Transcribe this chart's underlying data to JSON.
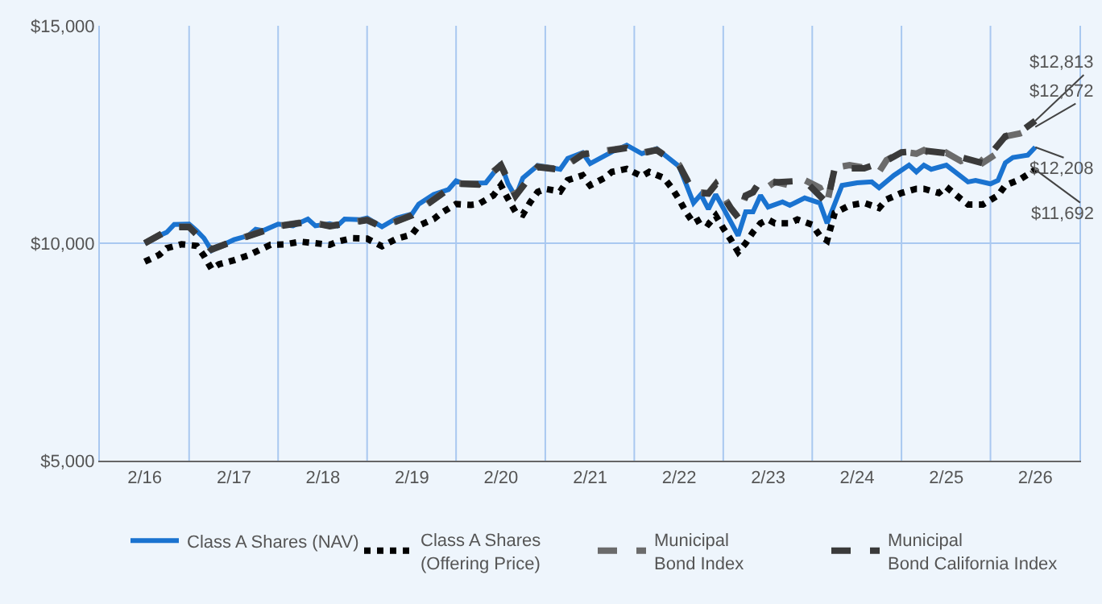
{
  "chart_data": {
    "type": "line",
    "xlim": [
      "2015-08-01",
      "2026-08-01"
    ],
    "xticks": [
      {
        "value": "2016-02-01",
        "label": "2/16"
      },
      {
        "value": "2016-08-01",
        "label": null
      },
      {
        "value": "2017-02-01",
        "label": "2/17"
      },
      {
        "value": "2017-08-01",
        "label": null
      },
      {
        "value": "2018-02-01",
        "label": "2/18"
      },
      {
        "value": "2018-08-01",
        "label": null
      },
      {
        "value": "2019-02-01",
        "label": "2/19"
      },
      {
        "value": "2019-08-01",
        "label": null
      },
      {
        "value": "2020-02-01",
        "label": "2/20"
      },
      {
        "value": "2020-08-01",
        "label": null
      },
      {
        "value": "2021-02-01",
        "label": "2/21"
      },
      {
        "value": "2021-08-01",
        "label": null
      },
      {
        "value": "2022-02-01",
        "label": "2/22"
      },
      {
        "value": "2022-08-01",
        "label": null
      },
      {
        "value": "2023-02-01",
        "label": "2/23"
      },
      {
        "value": "2023-08-01",
        "label": null
      },
      {
        "value": "2024-02-01",
        "label": "2/24"
      },
      {
        "value": "2024-08-01",
        "label": null
      },
      {
        "value": "2025-02-01",
        "label": "2/25"
      },
      {
        "value": "2025-08-01",
        "label": null
      },
      {
        "value": "2026-02-01",
        "label": "2/26"
      }
    ],
    "ylim": [
      5000,
      15000
    ],
    "yticks": [
      {
        "value": 5000,
        "label": "$5,000"
      },
      {
        "value": 10000,
        "label": "$10,000"
      },
      {
        "value": 15000,
        "label": "$15,000"
      }
    ],
    "grid": true,
    "legend": "bottom",
    "marker": "none",
    "series": [
      {
        "name": "Class A Shares (NAV)",
        "color": "#1a73d0",
        "line_style": "solid",
        "x": [
          "2016-02",
          "2016-04",
          "2016-05",
          "2016-06",
          "2016-08",
          "2016-09",
          "2016-10",
          "2016-11",
          "2016-12",
          "2017-02",
          "2017-04",
          "2017-05",
          "2017-06",
          "2017-08",
          "2017-10",
          "2017-12",
          "2018-01",
          "2018-03",
          "2018-04",
          "2018-05",
          "2018-07",
          "2018-08",
          "2018-10",
          "2018-12",
          "2019-02",
          "2019-03",
          "2019-05",
          "2019-07",
          "2019-08",
          "2019-09",
          "2019-12",
          "2020-02",
          "2020-03",
          "2020-04",
          "2020-05",
          "2020-07",
          "2020-10",
          "2020-11",
          "2021-01",
          "2021-02",
          "2021-05",
          "2021-07",
          "2021-09",
          "2021-11",
          "2022-02",
          "2022-04",
          "2022-05",
          "2022-06",
          "2022-07",
          "2022-08",
          "2022-10",
          "2022-11",
          "2022-12",
          "2023-01",
          "2023-02",
          "2023-04",
          "2023-05",
          "2023-07",
          "2023-09",
          "2023-10",
          "2023-12",
          "2024-02",
          "2024-04",
          "2024-05",
          "2024-07",
          "2024-09",
          "2024-10",
          "2024-11",
          "2024-12",
          "2025-02",
          "2025-05",
          "2025-06",
          "2025-08",
          "2025-09",
          "2025-10",
          "2025-11",
          "2026-01",
          "2026-02"
        ],
        "values": [
          10000,
          10175,
          10250,
          10430,
          10440,
          10290,
          10115,
          9830,
          9920,
          10080,
          10175,
          10320,
          10290,
          10440,
          10400,
          10555,
          10400,
          10450,
          10400,
          10555,
          10540,
          10580,
          10380,
          10580,
          10670,
          10900,
          11120,
          11235,
          11435,
          11370,
          11390,
          11830,
          11370,
          11065,
          11500,
          11790,
          11700,
          11950,
          12080,
          11830,
          12100,
          12255,
          12060,
          12175,
          11765,
          10925,
          11120,
          10785,
          11120,
          10810,
          10175,
          10720,
          10720,
          11100,
          10830,
          10950,
          10870,
          11040,
          10925,
          10460,
          11330,
          11390,
          11410,
          11275,
          11560,
          11795,
          11640,
          11795,
          11700,
          11795,
          11410,
          11445,
          11365,
          11445,
          11850,
          11970,
          12025,
          12208
        ]
      },
      {
        "name": "Class A Shares\n(Offering Price)",
        "color": "#000000",
        "line_style": "dotted",
        "x": [
          "2016-02",
          "2016-04",
          "2016-05",
          "2016-07",
          "2016-09",
          "2016-10",
          "2016-11",
          "2016-12",
          "2017-02",
          "2017-04",
          "2017-06",
          "2017-07",
          "2017-09",
          "2017-11",
          "2018-01",
          "2018-03",
          "2018-04",
          "2018-06",
          "2018-08",
          "2018-10",
          "2018-12",
          "2019-02",
          "2019-03",
          "2019-05",
          "2019-06",
          "2019-08",
          "2019-10",
          "2019-11",
          "2020-01",
          "2020-02",
          "2020-03",
          "2020-04",
          "2020-05",
          "2020-06",
          "2020-07",
          "2020-08",
          "2020-10",
          "2020-11",
          "2021-01",
          "2021-02",
          "2021-04",
          "2021-05",
          "2021-07",
          "2021-09",
          "2021-10",
          "2021-12",
          "2022-01",
          "2022-02",
          "2022-03",
          "2022-04",
          "2022-05",
          "2022-06",
          "2022-07",
          "2022-08",
          "2022-09",
          "2022-10",
          "2022-11",
          "2022-12",
          "2023-01",
          "2023-02",
          "2023-03",
          "2023-05",
          "2023-06",
          "2023-08",
          "2023-09",
          "2023-10",
          "2023-11",
          "2024-01",
          "2024-03",
          "2024-05",
          "2024-06",
          "2024-08",
          "2024-10",
          "2024-11",
          "2025-01",
          "2025-02",
          "2025-04",
          "2025-05",
          "2025-07",
          "2025-09",
          "2025-10",
          "2025-12",
          "2026-02"
        ],
        "values": [
          9575,
          9735,
          9885,
          9975,
          9940,
          9710,
          9410,
          9515,
          9610,
          9720,
          9885,
          9965,
          9975,
          10035,
          10000,
          9965,
          10035,
          10115,
          10105,
          9930,
          10105,
          10200,
          10405,
          10555,
          10695,
          10900,
          10880,
          10900,
          11100,
          11330,
          11020,
          10720,
          10660,
          10950,
          11180,
          11250,
          11190,
          11450,
          11560,
          11330,
          11500,
          11640,
          11710,
          11540,
          11640,
          11500,
          11275,
          11005,
          10720,
          10460,
          10555,
          10440,
          10635,
          10345,
          10080,
          9800,
          10000,
          10255,
          10460,
          10545,
          10460,
          10460,
          10545,
          10425,
          10175,
          10060,
          10695,
          10870,
          10925,
          10810,
          11005,
          11155,
          11250,
          11250,
          11155,
          11295,
          11020,
          10890,
          10890,
          11100,
          11330,
          11470,
          11692
        ]
      },
      {
        "name": "Municipal\nBond Index",
        "color": "#6b6b6b",
        "line_style": "dashed",
        "x": [
          "2016-02",
          "2016-06",
          "2016-08",
          "2016-11",
          "2017-02",
          "2017-08",
          "2017-12",
          "2018-03",
          "2018-08",
          "2018-10",
          "2019-02",
          "2019-08",
          "2019-11",
          "2020-02",
          "2020-04",
          "2020-07",
          "2020-10",
          "2021-01",
          "2021-07",
          "2021-09",
          "2021-11",
          "2022-02",
          "2022-04",
          "2022-06",
          "2022-07",
          "2022-09",
          "2022-10",
          "2022-11",
          "2022-12",
          "2023-01",
          "2023-02",
          "2023-03",
          "2023-05",
          "2023-07",
          "2023-09",
          "2023-10",
          "2023-11",
          "2024-01",
          "2024-03",
          "2024-05",
          "2024-06",
          "2024-08",
          "2024-10",
          "2024-11",
          "2025-01",
          "2025-02",
          "2025-04",
          "2025-06",
          "2025-07",
          "2025-09",
          "2025-10",
          "2025-12",
          "2026-02"
        ],
        "values": [
          10000,
          10380,
          10380,
          9850,
          10060,
          10400,
          10500,
          10400,
          10540,
          10380,
          10650,
          11380,
          11360,
          11800,
          11100,
          11760,
          11700,
          12050,
          12200,
          12080,
          12150,
          11800,
          11180,
          11155,
          11365,
          10810,
          10600,
          11100,
          11180,
          11450,
          11300,
          11410,
          11330,
          11450,
          11275,
          10925,
          11735,
          11795,
          11735,
          11640,
          11910,
          12105,
          12060,
          12140,
          11970,
          12080,
          11890,
          12025,
          11850,
          12080,
          12455,
          12525,
          12672
        ]
      },
      {
        "name": "Municipal\nBond California Index",
        "color": "#3a3a3a",
        "line_style": "dashed",
        "x": [
          "2016-02",
          "2016-06",
          "2016-08",
          "2016-11",
          "2017-02",
          "2017-08",
          "2017-12",
          "2018-03",
          "2018-08",
          "2018-10",
          "2019-02",
          "2019-08",
          "2019-11",
          "2020-02",
          "2020-04",
          "2020-07",
          "2020-10",
          "2021-01",
          "2021-07",
          "2021-09",
          "2021-11",
          "2022-02",
          "2022-04",
          "2022-06",
          "2022-07",
          "2022-09",
          "2022-10",
          "2022-11",
          "2022-12",
          "2023-01",
          "2023-03",
          "2023-07",
          "2023-10",
          "2023-11",
          "2024-03",
          "2024-06",
          "2024-08",
          "2024-11",
          "2025-02",
          "2025-07",
          "2025-10",
          "2025-12",
          "2026-02"
        ],
        "values": [
          10000,
          10370,
          10370,
          9860,
          10050,
          10390,
          10490,
          10390,
          10530,
          10370,
          10640,
          11370,
          11350,
          11790,
          11090,
          11750,
          11690,
          12040,
          12190,
          12070,
          12140,
          11790,
          11170,
          11140,
          11350,
          10800,
          10590,
          11090,
          11170,
          11440,
          11400,
          11440,
          10920,
          11720,
          11720,
          11900,
          12090,
          12130,
          12070,
          11840,
          12460,
          12560,
          12813
        ]
      }
    ],
    "annotations": [
      {
        "text": "$12,813",
        "x": "2026-02",
        "y": 12813
      },
      {
        "text": "$12,672",
        "x": "2026-02",
        "y": 12672
      },
      {
        "text": "$12,208",
        "x": "2026-02",
        "y": 12208
      },
      {
        "text": "$11,692",
        "x": "2026-02",
        "y": 11692
      }
    ]
  }
}
